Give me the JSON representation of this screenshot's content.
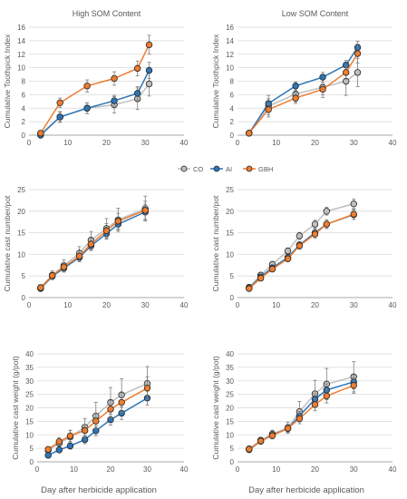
{
  "colors": {
    "CO": "#bfbfbf",
    "AI": "#2e75b6",
    "GBH": "#ed7d31",
    "axis": "#8c8c8c",
    "grid": "#d9d9d9",
    "text": "#595959"
  },
  "legend": {
    "items": [
      "CO",
      "AI",
      "GBH"
    ],
    "placement": "top-center"
  },
  "row_labels": {
    "left_x": "Day after herbicide application",
    "right_x": "Day after herbicide application"
  },
  "chart_data": [
    {
      "type": "line",
      "title": "High SOM Content",
      "xlabel": "",
      "ylabel": "Cumulative Toothpick Index",
      "xlim": [
        0,
        40
      ],
      "ylim": [
        0,
        16
      ],
      "xticks": [
        0,
        10,
        20,
        30,
        40
      ],
      "yticks": [
        0,
        2,
        4,
        6,
        8,
        10,
        12,
        14,
        16
      ],
      "grid": true,
      "series": [
        {
          "name": "CO",
          "x": [
            3,
            8,
            15,
            22,
            28,
            31
          ],
          "y": [
            0.2,
            2.7,
            4.0,
            4.5,
            5.4,
            7.6
          ],
          "err": [
            0.3,
            0.8,
            0.8,
            1.2,
            1.6,
            1.8
          ]
        },
        {
          "name": "AI",
          "x": [
            3,
            8,
            15,
            22,
            28,
            31
          ],
          "y": [
            0.0,
            2.7,
            4.0,
            5.1,
            6.2,
            9.6
          ],
          "err": [
            0.2,
            0.7,
            0.8,
            0.8,
            1.0,
            1.2
          ]
        },
        {
          "name": "GBH",
          "x": [
            3,
            8,
            15,
            22,
            28,
            31
          ],
          "y": [
            0.3,
            4.8,
            7.3,
            8.4,
            9.9,
            13.4
          ],
          "err": [
            0.3,
            0.7,
            0.9,
            1.0,
            1.1,
            1.4
          ]
        }
      ]
    },
    {
      "type": "line",
      "title": "Low SOM Content",
      "xlabel": "",
      "ylabel": "Cumulative Toothpick Index",
      "xlim": [
        0,
        40
      ],
      "ylim": [
        0,
        16
      ],
      "xticks": [
        0,
        10,
        20,
        30,
        40
      ],
      "yticks": [
        0,
        2,
        4,
        6,
        8,
        10,
        12,
        14,
        16
      ],
      "grid": true,
      "series": [
        {
          "name": "CO",
          "x": [
            3,
            8,
            15,
            22,
            28,
            31
          ],
          "y": [
            0.3,
            4.3,
            6.1,
            7.1,
            8.0,
            9.3
          ],
          "err": [
            0.2,
            1.6,
            1.2,
            1.5,
            2.1,
            2.1
          ]
        },
        {
          "name": "AI",
          "x": [
            3,
            8,
            15,
            22,
            28,
            31
          ],
          "y": [
            0.3,
            4.7,
            7.3,
            8.6,
            10.4,
            13.0
          ],
          "err": [
            0.2,
            0.7,
            0.6,
            0.7,
            0.7,
            0.9
          ]
        },
        {
          "name": "GBH",
          "x": [
            3,
            8,
            15,
            22,
            28,
            31
          ],
          "y": [
            0.3,
            3.8,
            5.5,
            6.8,
            9.3,
            12.1
          ],
          "err": [
            0.2,
            0.8,
            0.8,
            0.8,
            1.0,
            1.4
          ]
        }
      ]
    },
    {
      "type": "line",
      "title": "",
      "xlabel": "",
      "ylabel": "Cumulative cast number/pot",
      "xlim": [
        0,
        40
      ],
      "ylim": [
        0,
        25
      ],
      "xticks": [
        0,
        10,
        20,
        30,
        40
      ],
      "yticks": [
        0,
        5,
        10,
        15,
        20,
        25
      ],
      "grid": true,
      "series": [
        {
          "name": "CO",
          "x": [
            3,
            6,
            9,
            13,
            16,
            20,
            23,
            30
          ],
          "y": [
            2.3,
            5.2,
            7.4,
            10.3,
            13.3,
            16.0,
            18.0,
            20.6
          ],
          "err": [
            0.7,
            1.0,
            1.3,
            1.5,
            2.0,
            2.3,
            2.7,
            2.9
          ]
        },
        {
          "name": "AI",
          "x": [
            3,
            6,
            9,
            13,
            16,
            20,
            23,
            30
          ],
          "y": [
            2.1,
            4.9,
            6.8,
            9.3,
            12.0,
            14.8,
            17.0,
            19.8
          ],
          "err": [
            0.4,
            0.7,
            0.9,
            1.0,
            1.1,
            1.3,
            1.4,
            1.8
          ]
        },
        {
          "name": "GBH",
          "x": [
            3,
            6,
            9,
            13,
            16,
            20,
            23,
            30
          ],
          "y": [
            2.3,
            5.1,
            7.1,
            9.6,
            12.4,
            15.5,
            17.7,
            20.2
          ],
          "err": [
            0.5,
            0.8,
            1.0,
            1.2,
            1.3,
            1.6,
            1.8,
            2.1
          ]
        }
      ]
    },
    {
      "type": "line",
      "title": "",
      "xlabel": "",
      "ylabel": "Cumulative cast number/pot",
      "xlim": [
        0,
        40
      ],
      "ylim": [
        0,
        25
      ],
      "xticks": [
        0,
        10,
        20,
        30,
        40
      ],
      "yticks": [
        0,
        5,
        10,
        15,
        20,
        25
      ],
      "grid": true,
      "series": [
        {
          "name": "CO",
          "x": [
            3,
            6,
            9,
            13,
            16,
            20,
            23,
            30
          ],
          "y": [
            2.4,
            5.2,
            7.7,
            10.8,
            14.3,
            17.0,
            20.0,
            21.7
          ],
          "err": [
            0.3,
            0.5,
            0.6,
            0.7,
            0.8,
            0.9,
            0.9,
            1.1
          ]
        },
        {
          "name": "AI",
          "x": [
            3,
            6,
            9,
            13,
            16,
            20,
            23,
            30
          ],
          "y": [
            2.2,
            4.8,
            6.9,
            9.3,
            12.2,
            15.0,
            17.0,
            19.2
          ],
          "err": [
            0.3,
            0.5,
            0.6,
            0.7,
            0.8,
            0.9,
            1.0,
            1.1
          ]
        },
        {
          "name": "GBH",
          "x": [
            3,
            6,
            9,
            13,
            16,
            20,
            23,
            30
          ],
          "y": [
            2.1,
            4.5,
            6.6,
            9.0,
            12.0,
            14.7,
            17.0,
            19.3
          ],
          "err": [
            0.3,
            0.5,
            0.6,
            0.7,
            0.8,
            0.9,
            1.0,
            1.2
          ]
        }
      ]
    },
    {
      "type": "line",
      "title": "",
      "xlabel": "",
      "ylabel": "Cumulative cast weight (g/pot)",
      "xlim": [
        0,
        40
      ],
      "ylim": [
        0,
        40
      ],
      "xticks": [
        0,
        10,
        20,
        30,
        40
      ],
      "yticks": [
        0,
        5,
        10,
        15,
        20,
        25,
        30,
        35,
        40
      ],
      "grid": true,
      "series": [
        {
          "name": "CO",
          "x": [
            3,
            6,
            9,
            13,
            16,
            20,
            23,
            30
          ],
          "y": [
            4.3,
            6.8,
            9.2,
            12.8,
            17.0,
            22.0,
            24.8,
            29.0
          ],
          "err": [
            1.2,
            1.6,
            2.5,
            3.2,
            5.0,
            5.5,
            6.0,
            6.3
          ]
        },
        {
          "name": "AI",
          "x": [
            3,
            6,
            9,
            13,
            16,
            20,
            23,
            30
          ],
          "y": [
            2.4,
            4.4,
            5.9,
            8.2,
            11.5,
            15.6,
            18.0,
            23.6
          ],
          "err": [
            0.5,
            0.9,
            1.2,
            1.5,
            1.8,
            2.0,
            2.3,
            2.6
          ]
        },
        {
          "name": "GBH",
          "x": [
            3,
            6,
            9,
            13,
            16,
            20,
            23,
            30
          ],
          "y": [
            4.6,
            7.5,
            9.6,
            11.6,
            15.1,
            19.5,
            22.0,
            27.3
          ],
          "err": [
            1.0,
            1.5,
            2.0,
            2.3,
            2.8,
            3.2,
            3.6,
            4.2
          ]
        }
      ]
    },
    {
      "type": "line",
      "title": "",
      "xlabel": "",
      "ylabel": "Cumulative cast weight (g/pot)",
      "xlim": [
        0,
        40
      ],
      "ylim": [
        0,
        40
      ],
      "xticks": [
        0,
        10,
        20,
        30,
        40
      ],
      "yticks": [
        0,
        5,
        10,
        15,
        20,
        25,
        30,
        35,
        40
      ],
      "grid": true,
      "series": [
        {
          "name": "CO",
          "x": [
            3,
            6,
            9,
            13,
            16,
            20,
            23,
            30
          ],
          "y": [
            4.8,
            8.0,
            10.3,
            12.6,
            18.6,
            25.2,
            28.8,
            31.5
          ],
          "err": [
            0.9,
            1.0,
            1.4,
            2.1,
            3.8,
            5.0,
            5.8,
            5.6
          ]
        },
        {
          "name": "AI",
          "x": [
            3,
            6,
            9,
            13,
            16,
            20,
            23,
            30
          ],
          "y": [
            4.5,
            7.6,
            9.9,
            12.3,
            17.0,
            23.2,
            26.6,
            29.6
          ],
          "err": [
            0.7,
            0.9,
            1.1,
            1.3,
            1.7,
            2.0,
            2.3,
            2.6
          ]
        },
        {
          "name": "GBH",
          "x": [
            3,
            6,
            9,
            13,
            16,
            20,
            23,
            30
          ],
          "y": [
            4.7,
            7.7,
            9.7,
            12.4,
            16.0,
            21.2,
            24.4,
            28.3
          ],
          "err": [
            0.8,
            1.0,
            1.2,
            1.5,
            1.9,
            2.3,
            2.6,
            2.9
          ]
        }
      ]
    }
  ]
}
